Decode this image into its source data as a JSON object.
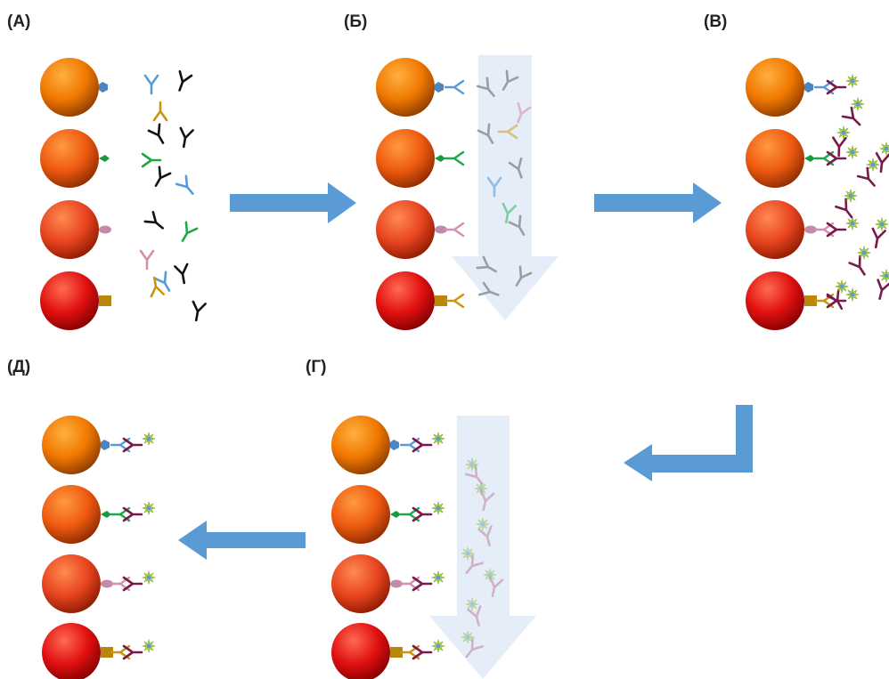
{
  "panels": [
    {
      "label": "(А)"
    },
    {
      "label": "(Б)"
    },
    {
      "label": "(В)"
    },
    {
      "label": "(Г)"
    },
    {
      "label": "(Д)"
    }
  ]
}
